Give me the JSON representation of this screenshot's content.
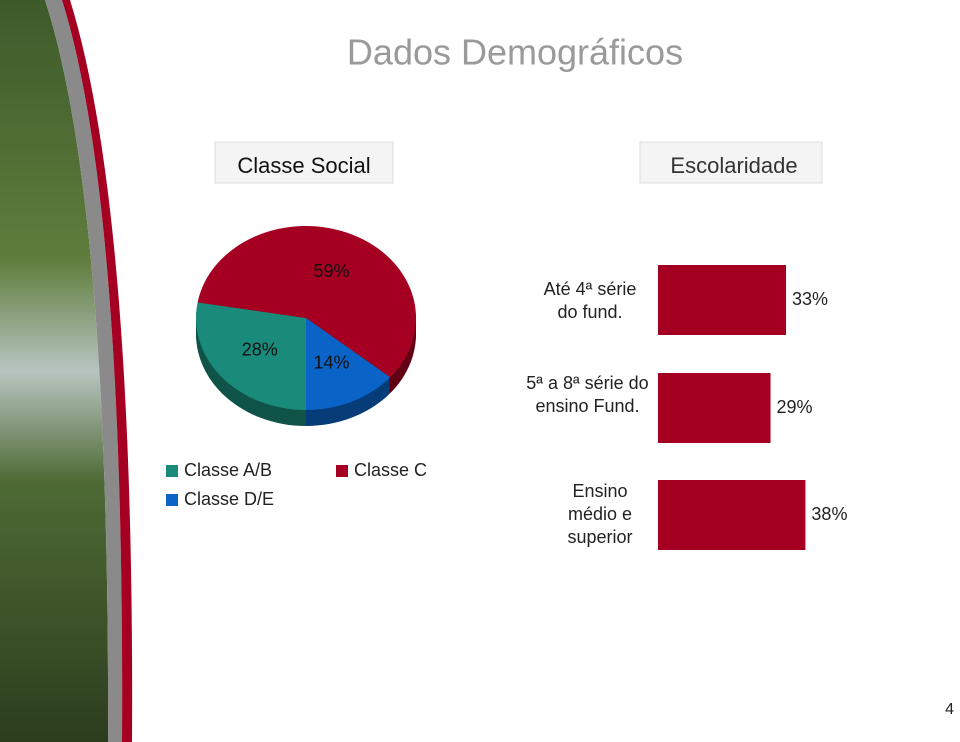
{
  "title": "Dados Demográficos",
  "page_number": "4",
  "chart_data": [
    {
      "type": "pie",
      "title": "Classe Social",
      "categories": [
        "Classe A/B",
        "Classe C",
        "Classe D/E"
      ],
      "values": [
        28,
        59,
        14
      ],
      "value_labels": [
        "28%",
        "59%",
        "14%"
      ],
      "colors": [
        "#1a8a7a",
        "#a50021",
        "#0a64c8"
      ],
      "legend": "bottom"
    },
    {
      "type": "barh",
      "title": "Escolaridade",
      "categories": [
        "Até 4ª série do fund.",
        "5ª a 8ª série do ensino Fund.",
        "Ensino médio e superior"
      ],
      "values": [
        33,
        29,
        38
      ],
      "value_labels": [
        "33%",
        "29%",
        "38%"
      ],
      "color": "#a50021"
    }
  ]
}
